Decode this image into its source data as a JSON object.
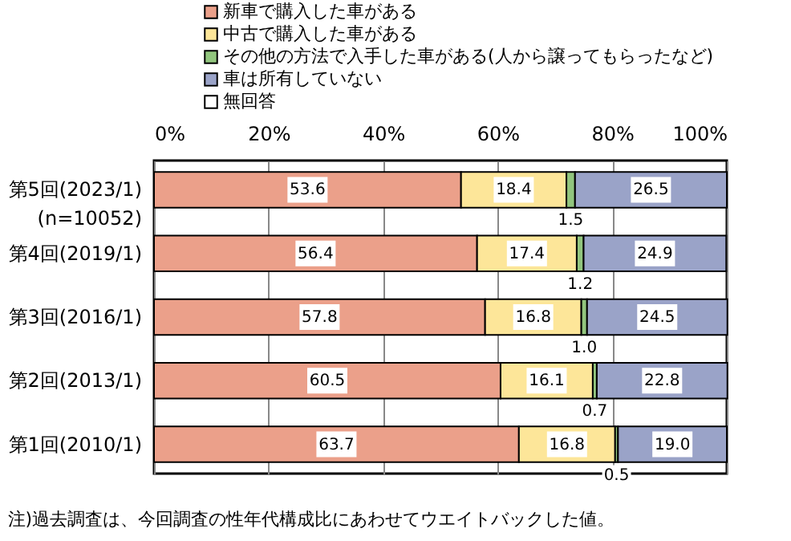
{
  "chart_data": {
    "type": "bar",
    "orientation": "horizontal",
    "stacked": true,
    "grid": "x",
    "legend": "top",
    "categories": [
      "第5回(2023/1)\n(n=10052)",
      "第4回(2019/1)",
      "第3回(2016/1)",
      "第2回(2013/1)",
      "第1回(2010/1)"
    ],
    "series": [
      {
        "name": "新車で購入した車がある",
        "color": "#eba08a",
        "values": [
          53.6,
          56.4,
          57.8,
          60.5,
          63.7
        ],
        "value_labels": [
          "53.6",
          "56.4",
          "57.8",
          "60.5",
          "63.7"
        ]
      },
      {
        "name": "中古で購入した車がある",
        "color": "#fde699",
        "values": [
          18.4,
          17.4,
          16.8,
          16.1,
          16.8
        ],
        "value_labels": [
          "18.4",
          "17.4",
          "16.8",
          "16.1",
          "16.8"
        ]
      },
      {
        "name": "その他の方法で入手した車がある(人から譲ってもらったなど)",
        "color": "#92c67e",
        "values": [
          1.5,
          1.2,
          1.0,
          0.7,
          0.5
        ],
        "value_labels": [
          "1.5",
          "1.2",
          "1.0",
          "0.7",
          "0.5"
        ]
      },
      {
        "name": "車は所有していない",
        "color": "#9aa3c8",
        "values": [
          26.5,
          24.9,
          24.5,
          22.8,
          19.0
        ],
        "value_labels": [
          "26.5",
          "24.9",
          "24.5",
          "22.8",
          "19.0"
        ]
      },
      {
        "name": "無回答",
        "color": "#ffffff",
        "values": [
          null,
          null,
          null,
          null,
          null
        ]
      }
    ],
    "xlim": [
      0,
      100
    ],
    "xticks": [
      {
        "value": 0,
        "label": "0%"
      },
      {
        "value": 20,
        "label": "20%"
      },
      {
        "value": 40,
        "label": "40%"
      },
      {
        "value": 60,
        "label": "60%"
      },
      {
        "value": 80,
        "label": "80%"
      },
      {
        "value": 100,
        "label": "100%"
      }
    ],
    "annotations": [
      "注)過去調査は、今回調査の性年代構成比にあわせてウエイトバックした値。"
    ]
  }
}
